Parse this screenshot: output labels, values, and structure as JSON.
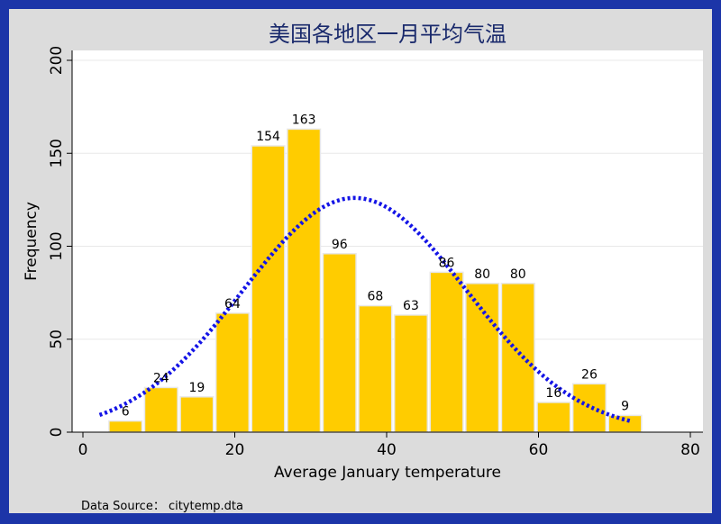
{
  "chart_data": {
    "type": "bar",
    "title": "美国各地区一月平均气温",
    "xlabel": "Average January temperature",
    "ylabel": "Frequency",
    "xlim": [
      0,
      80
    ],
    "ylim": [
      0,
      200
    ],
    "xticks": [
      0,
      20,
      40,
      60,
      80
    ],
    "yticks": [
      0,
      50,
      100,
      150,
      200
    ],
    "bin_width": 4.7,
    "bins": [
      {
        "x": 5.6,
        "value": 6
      },
      {
        "x": 10.3,
        "value": 24
      },
      {
        "x": 15.0,
        "value": 19
      },
      {
        "x": 19.7,
        "value": 64
      },
      {
        "x": 24.4,
        "value": 154
      },
      {
        "x": 29.1,
        "value": 163
      },
      {
        "x": 33.8,
        "value": 96
      },
      {
        "x": 38.5,
        "value": 68
      },
      {
        "x": 43.2,
        "value": 63
      },
      {
        "x": 47.9,
        "value": 86
      },
      {
        "x": 52.6,
        "value": 80
      },
      {
        "x": 57.3,
        "value": 80
      },
      {
        "x": 62.0,
        "value": 16
      },
      {
        "x": 66.7,
        "value": 26
      },
      {
        "x": 71.4,
        "value": 9
      }
    ],
    "normal_curve": {
      "mean": 35.8,
      "sd": 14.7,
      "peak": 126,
      "x_range": [
        2.2,
        72.2
      ],
      "color": "#1414e6",
      "style": "dotted"
    },
    "bar_color": "#ffcc00",
    "grid": "horizontal"
  },
  "source_note": "Data Source： citytemp.dta"
}
